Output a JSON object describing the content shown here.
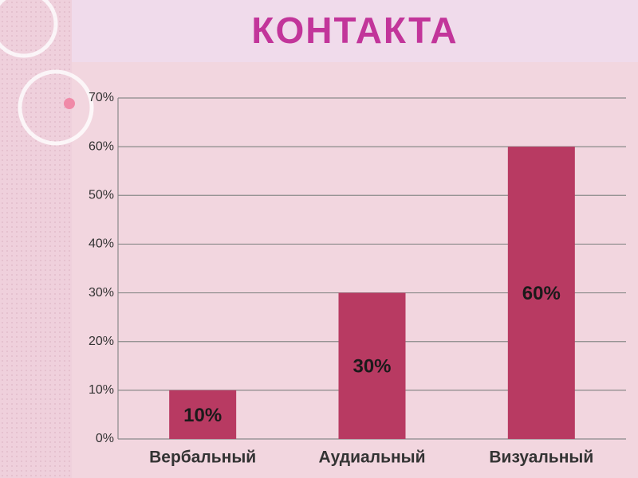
{
  "chart_data": {
    "type": "bar",
    "title": "КОНТАКТА",
    "categories": [
      "Вербальный",
      "Аудиальный",
      "Визуальный"
    ],
    "values": [
      10,
      30,
      60
    ],
    "value_labels": [
      "10%",
      "30%",
      "60%"
    ],
    "color": "#b83a62",
    "ylim": [
      0,
      70
    ],
    "yticks": [
      {
        "value": 0,
        "label": "0%"
      },
      {
        "value": 10,
        "label": "10%"
      },
      {
        "value": 20,
        "label": "20%"
      },
      {
        "value": 30,
        "label": "30%"
      },
      {
        "value": 40,
        "label": "40%"
      },
      {
        "value": 50,
        "label": "50%"
      },
      {
        "value": 60,
        "label": "60%"
      },
      {
        "value": 70,
        "label": "70%"
      }
    ],
    "grid": true
  }
}
